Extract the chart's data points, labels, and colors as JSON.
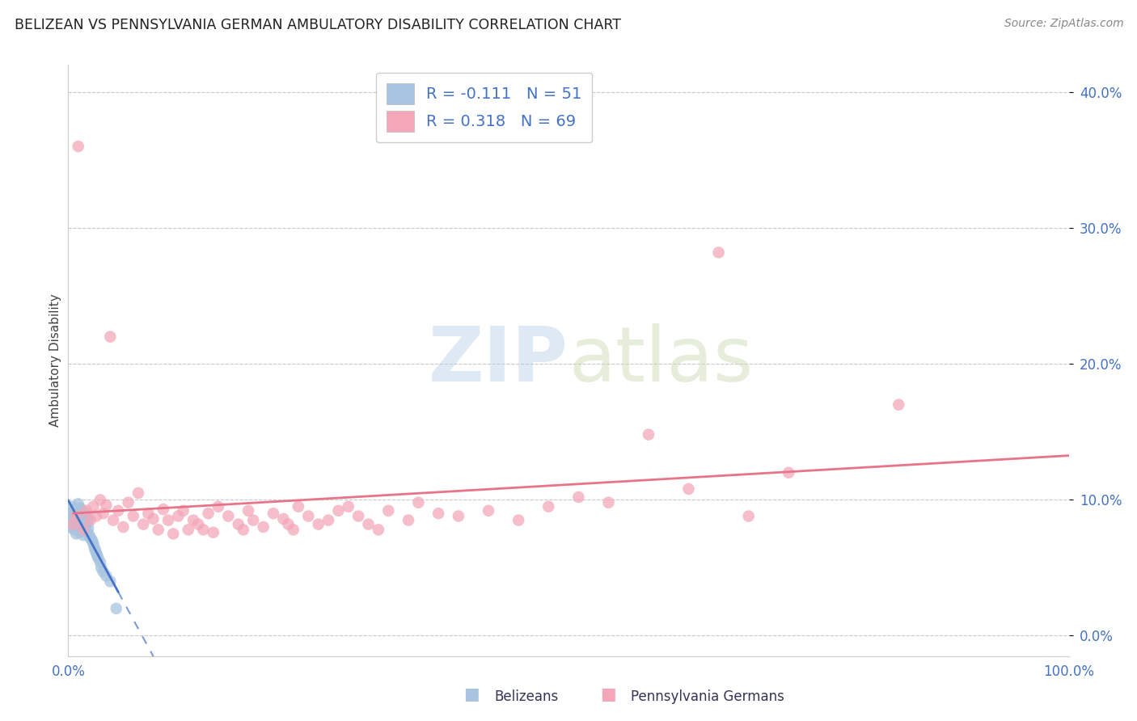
{
  "title": "BELIZEAN VS PENNSYLVANIA GERMAN AMBULATORY DISABILITY CORRELATION CHART",
  "source": "Source: ZipAtlas.com",
  "ylabel": "Ambulatory Disability",
  "xlim": [
    0.0,
    1.0
  ],
  "ylim": [
    -0.015,
    0.42
  ],
  "xticks": [
    0.0,
    0.1,
    0.2,
    0.3,
    0.4,
    0.5,
    0.6,
    0.7,
    0.8,
    0.9,
    1.0
  ],
  "yticks": [
    0.0,
    0.1,
    0.2,
    0.3,
    0.4
  ],
  "belizean_color": "#a8c4e0",
  "penn_german_color": "#f4a7b9",
  "belizean_R": -0.111,
  "belizean_N": 51,
  "penn_german_R": 0.318,
  "penn_german_N": 69,
  "watermark_zip": "ZIP",
  "watermark_atlas": "atlas",
  "background_color": "#ffffff",
  "grid_color": "#c8c8c8",
  "belizean_line_color": "#4472c4",
  "penn_german_line_color": "#e8748a",
  "axis_text_color": "#4472c4",
  "title_color": "#222222",
  "source_color": "#888888",
  "legend_border_color": "#cccccc",
  "belizean_scatter_x": [
    0.002,
    0.003,
    0.004,
    0.005,
    0.005,
    0.006,
    0.006,
    0.007,
    0.007,
    0.008,
    0.008,
    0.009,
    0.009,
    0.01,
    0.01,
    0.011,
    0.011,
    0.012,
    0.012,
    0.013,
    0.013,
    0.014,
    0.014,
    0.015,
    0.015,
    0.016,
    0.016,
    0.017,
    0.017,
    0.018,
    0.018,
    0.019,
    0.019,
    0.02,
    0.02,
    0.021,
    0.022,
    0.023,
    0.024,
    0.025,
    0.026,
    0.027,
    0.028,
    0.029,
    0.03,
    0.032,
    0.033,
    0.035,
    0.038,
    0.042,
    0.048
  ],
  "belizean_scatter_y": [
    0.08,
    0.09,
    0.095,
    0.085,
    0.092,
    0.078,
    0.088,
    0.082,
    0.093,
    0.075,
    0.086,
    0.079,
    0.091,
    0.084,
    0.097,
    0.076,
    0.089,
    0.083,
    0.094,
    0.077,
    0.087,
    0.08,
    0.092,
    0.074,
    0.088,
    0.081,
    0.09,
    0.078,
    0.085,
    0.082,
    0.088,
    0.076,
    0.083,
    0.079,
    0.086,
    0.074,
    0.072,
    0.071,
    0.07,
    0.068,
    0.065,
    0.063,
    0.061,
    0.059,
    0.057,
    0.054,
    0.05,
    0.047,
    0.044,
    0.04,
    0.02
  ],
  "penn_german_scatter_x": [
    0.005,
    0.008,
    0.01,
    0.015,
    0.018,
    0.022,
    0.025,
    0.028,
    0.032,
    0.035,
    0.038,
    0.042,
    0.045,
    0.05,
    0.055,
    0.06,
    0.065,
    0.07,
    0.075,
    0.08,
    0.085,
    0.09,
    0.095,
    0.1,
    0.105,
    0.11,
    0.115,
    0.12,
    0.125,
    0.13,
    0.135,
    0.14,
    0.145,
    0.15,
    0.16,
    0.17,
    0.175,
    0.18,
    0.185,
    0.195,
    0.205,
    0.215,
    0.22,
    0.225,
    0.23,
    0.24,
    0.25,
    0.26,
    0.27,
    0.28,
    0.29,
    0.3,
    0.31,
    0.32,
    0.34,
    0.35,
    0.37,
    0.39,
    0.42,
    0.45,
    0.48,
    0.51,
    0.54,
    0.58,
    0.62,
    0.65,
    0.68,
    0.72,
    0.83
  ],
  "penn_german_scatter_y": [
    0.082,
    0.088,
    0.36,
    0.078,
    0.092,
    0.085,
    0.095,
    0.088,
    0.1,
    0.09,
    0.096,
    0.22,
    0.085,
    0.092,
    0.08,
    0.098,
    0.088,
    0.105,
    0.082,
    0.09,
    0.086,
    0.078,
    0.093,
    0.085,
    0.075,
    0.088,
    0.092,
    0.078,
    0.085,
    0.082,
    0.078,
    0.09,
    0.076,
    0.095,
    0.088,
    0.082,
    0.078,
    0.092,
    0.085,
    0.08,
    0.09,
    0.086,
    0.082,
    0.078,
    0.095,
    0.088,
    0.082,
    0.085,
    0.092,
    0.095,
    0.088,
    0.082,
    0.078,
    0.092,
    0.085,
    0.098,
    0.09,
    0.088,
    0.092,
    0.085,
    0.095,
    0.102,
    0.098,
    0.148,
    0.108,
    0.282,
    0.088,
    0.12,
    0.17
  ]
}
